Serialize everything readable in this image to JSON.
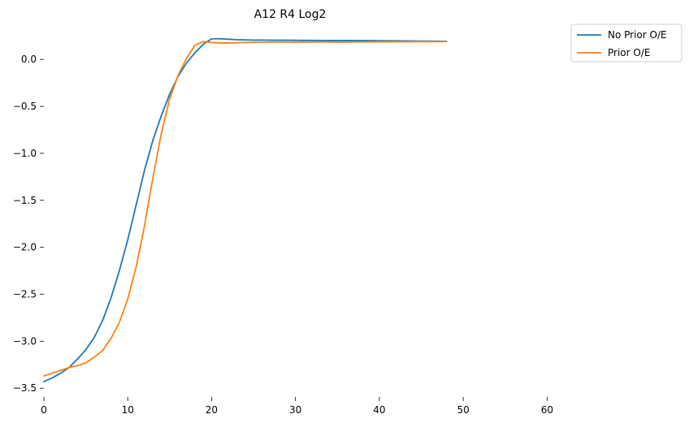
{
  "chart_data": {
    "type": "line",
    "title": "A12 R4 Log2",
    "xlabel": "",
    "ylabel": "",
    "xlim": [
      0,
      62
    ],
    "ylim": [
      -3.55,
      0.33
    ],
    "xticks": [
      0,
      10,
      20,
      30,
      40,
      50,
      60
    ],
    "yticks": [
      -3.5,
      -3.0,
      -2.5,
      -2.0,
      -1.5,
      -1.0,
      -0.5,
      0.0
    ],
    "ytick_labels": [
      "−3.5",
      "−3.0",
      "−2.5",
      "−2.0",
      "−1.5",
      "−1.0",
      "−0.5",
      "0.0"
    ],
    "grid": false,
    "legend_position": "top-right (outside plot)",
    "x": [
      0,
      1,
      2,
      3,
      4,
      5,
      6,
      7,
      8,
      9,
      10,
      11,
      12,
      13,
      14,
      15,
      16,
      17,
      18,
      19,
      20,
      21,
      22,
      23,
      24,
      25,
      26,
      27,
      28,
      29,
      30,
      31,
      32,
      33,
      34,
      35,
      36,
      37,
      38,
      39,
      40,
      41,
      42,
      43,
      44,
      45,
      46,
      47,
      48
    ],
    "series": [
      {
        "name": "No Prior O/E",
        "color": "#1f77b4",
        "values": [
          -3.43,
          -3.39,
          -3.34,
          -3.28,
          -3.19,
          -3.09,
          -2.96,
          -2.78,
          -2.54,
          -2.25,
          -1.92,
          -1.55,
          -1.18,
          -0.86,
          -0.6,
          -0.37,
          -0.18,
          -0.04,
          0.07,
          0.16,
          0.22,
          0.22,
          0.215,
          0.21,
          0.208,
          0.206,
          0.206,
          0.205,
          0.204,
          0.204,
          0.203,
          0.202,
          0.202,
          0.201,
          0.201,
          0.201,
          0.201,
          0.201,
          0.2,
          0.2,
          0.199,
          0.198,
          0.198,
          0.197,
          0.196,
          0.195,
          0.195,
          0.194,
          0.193
        ]
      },
      {
        "name": "Prior O/E",
        "color": "#ff7f0e",
        "values": [
          -3.37,
          -3.34,
          -3.31,
          -3.28,
          -3.26,
          -3.23,
          -3.17,
          -3.1,
          -2.97,
          -2.8,
          -2.55,
          -2.21,
          -1.77,
          -1.26,
          -0.79,
          -0.42,
          -0.17,
          0.01,
          0.15,
          0.19,
          0.18,
          0.175,
          0.175,
          0.178,
          0.18,
          0.182,
          0.183,
          0.184,
          0.184,
          0.183,
          0.183,
          0.184,
          0.185,
          0.185,
          0.185,
          0.184,
          0.184,
          0.185,
          0.186,
          0.187,
          0.188,
          0.188,
          0.189,
          0.189,
          0.19,
          0.19,
          0.19,
          0.19,
          0.191
        ]
      }
    ]
  }
}
